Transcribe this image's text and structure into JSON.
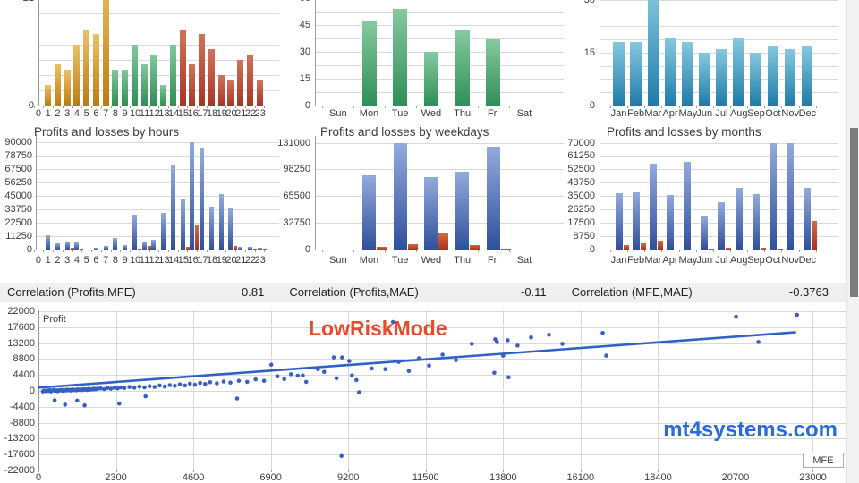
{
  "watermark": "mt4systems.com",
  "annotation": "LowRiskMode",
  "correlations": [
    {
      "label": "Correlation (Profits,MFE)",
      "value": "0.81"
    },
    {
      "label": "Correlation (Profits,MAE)",
      "value": "-0.11"
    },
    {
      "label": "Correlation (MFE,MAE)",
      "value": "-0.3763"
    }
  ],
  "palette": {
    "hours_early": [
      "#edc169",
      "#bc7c10"
    ],
    "hours_mid": [
      "#82c89d",
      "#2f8f55"
    ],
    "hours_late": [
      "#d0745a",
      "#a93427"
    ],
    "weekday_green": [
      "#85c9a0",
      "#2f8f58"
    ],
    "month_teal": [
      "#87c8df",
      "#1e7ca8"
    ],
    "profit_blue": [
      "#93aadc",
      "#30509c"
    ],
    "loss_red": [
      "#d06a45",
      "#aa3418"
    ],
    "scatter_dot": "#3a5ec4",
    "trend_line": "#2f62c4",
    "annotation_red": "#e8492a",
    "watermark_blue": "#2a6ade"
  },
  "chart_data": [
    {
      "id": "trades_by_hours",
      "type": "bar",
      "title": "",
      "categories": [
        "0",
        "1",
        "2",
        "3",
        "4",
        "5",
        "6",
        "7",
        "8",
        "9",
        "10",
        "11",
        "12",
        "13",
        "14",
        "15",
        "16",
        "17",
        "18",
        "19",
        "20",
        "21",
        "22",
        "23"
      ],
      "values": [
        0,
        4,
        8,
        7,
        12,
        15,
        14,
        26,
        7,
        7,
        12,
        8,
        10,
        4,
        12,
        15,
        8,
        14,
        11,
        6,
        5,
        9,
        10,
        5
      ],
      "ylim": [
        0,
        21
      ],
      "yticks": [
        0,
        21
      ],
      "grid_step": 3,
      "segment_colors": [
        {
          "to": 7,
          "color": "hours_early"
        },
        {
          "to": 14,
          "color": "hours_mid"
        },
        {
          "to": 23,
          "color": "hours_late"
        }
      ],
      "note": "top of chart cut off by viewport"
    },
    {
      "id": "trades_by_weekdays",
      "type": "bar",
      "title": "",
      "categories": [
        "Sun",
        "Mon",
        "Tue",
        "Wed",
        "Thu",
        "Fri",
        "Sat"
      ],
      "values": [
        0,
        47,
        54,
        30,
        42,
        37,
        0
      ],
      "ylim": [
        0,
        60
      ],
      "yticks": [
        0,
        15,
        30,
        45,
        60
      ],
      "grid_step": 7.5,
      "color": "weekday_green"
    },
    {
      "id": "trades_by_months",
      "type": "bar",
      "title": "",
      "categories": [
        "Jan",
        "Feb",
        "Mar",
        "Apr",
        "May",
        "Jun",
        "Jul",
        "Aug",
        "Sep",
        "Oct",
        "Nov",
        "Dec"
      ],
      "values": [
        18,
        18,
        33,
        19,
        18,
        15,
        16,
        19,
        15,
        17,
        16,
        17
      ],
      "ylim": [
        0,
        30
      ],
      "yticks": [
        0,
        15,
        30
      ],
      "grid_step": 3.75,
      "color": "month_teal"
    },
    {
      "id": "pnl_by_hours",
      "type": "bar",
      "title": "Profits and losses by hours",
      "categories": [
        "0",
        "1",
        "2",
        "3",
        "4",
        "5",
        "6",
        "7",
        "8",
        "9",
        "10",
        "11",
        "12",
        "13",
        "14",
        "15",
        "16",
        "17",
        "18",
        "19",
        "20",
        "21",
        "22",
        "23"
      ],
      "series": [
        {
          "name": "profit",
          "color": "profit_blue",
          "values": [
            0,
            12000,
            5500,
            6500,
            6000,
            0,
            1500,
            3200,
            9500,
            3500,
            29500,
            6500,
            8500,
            31000,
            71500,
            42000,
            90000,
            85000,
            36000,
            46500,
            34500,
            2500,
            2500,
            1800
          ]
        },
        {
          "name": "loss",
          "color": "loss_red",
          "values": [
            0,
            0,
            0,
            1500,
            800,
            0,
            0,
            0,
            0,
            0,
            900,
            2800,
            0,
            0,
            0,
            2000,
            21000,
            0,
            0,
            0,
            3000,
            0,
            1000,
            900
          ]
        }
      ],
      "ylim": [
        0,
        90000
      ],
      "yticks": [
        0,
        11250,
        22500,
        33750,
        45000,
        56250,
        67500,
        78750,
        90000
      ],
      "grid_step": 11250
    },
    {
      "id": "pnl_by_weekdays",
      "type": "bar",
      "title": "Profits and losses by weekdays",
      "categories": [
        "Sun",
        "Mon",
        "Tue",
        "Wed",
        "Thu",
        "Fri",
        "Sat"
      ],
      "series": [
        {
          "name": "profit",
          "color": "profit_blue",
          "values": [
            0,
            91000,
            131000,
            89000,
            95500,
            126000,
            0
          ]
        },
        {
          "name": "loss",
          "color": "loss_red",
          "values": [
            0,
            3000,
            6500,
            19500,
            5500,
            700,
            0
          ]
        }
      ],
      "ylim": [
        0,
        131000
      ],
      "yticks": [
        0,
        32750,
        65500,
        98250,
        131000
      ],
      "grid_step": 32750
    },
    {
      "id": "pnl_by_months",
      "type": "bar",
      "title": "Profits and losses by months",
      "categories": [
        "Jan",
        "Feb",
        "Mar",
        "Apr",
        "May",
        "Jun",
        "Jul",
        "Aug",
        "Sep",
        "Oct",
        "Nov",
        "Dec"
      ],
      "series": [
        {
          "name": "profit",
          "color": "profit_blue",
          "values": [
            37000,
            37500,
            56000,
            35500,
            57500,
            21500,
            31000,
            40500,
            36300,
            70000,
            70000,
            40500
          ]
        },
        {
          "name": "loss",
          "color": "loss_red",
          "values": [
            3000,
            4300,
            5800,
            0,
            0,
            600,
            1200,
            0,
            1300,
            500,
            0,
            19000
          ]
        }
      ],
      "ylim": [
        0,
        70000
      ],
      "yticks": [
        0,
        8750,
        17500,
        26250,
        35000,
        43750,
        52500,
        61250,
        70000
      ],
      "grid_step": 8750
    },
    {
      "id": "profit_vs_mfe",
      "type": "scatter",
      "xlabel": "MFE",
      "ylabel": "Profit",
      "xlim": [
        0,
        23000
      ],
      "ylim": [
        -22000,
        22000
      ],
      "xticks": [
        0,
        2300,
        4600,
        6900,
        9200,
        11500,
        13800,
        16100,
        18400,
        20700,
        23000
      ],
      "yticks": [
        22000,
        17600,
        13200,
        8800,
        4400,
        0,
        -4400,
        -8800,
        -13200,
        -17600,
        -22000
      ],
      "trend": {
        "x": [
          0,
          22500
        ],
        "y": [
          900,
          16200
        ]
      },
      "points": [
        [
          130,
          -150
        ],
        [
          170,
          50
        ],
        [
          210,
          -50
        ],
        [
          250,
          150
        ],
        [
          290,
          0
        ],
        [
          330,
          200
        ],
        [
          370,
          -150
        ],
        [
          410,
          100
        ],
        [
          450,
          250
        ],
        [
          490,
          0
        ],
        [
          530,
          150
        ],
        [
          570,
          -100
        ],
        [
          610,
          200
        ],
        [
          650,
          100
        ],
        [
          690,
          300
        ],
        [
          730,
          0
        ],
        [
          770,
          200
        ],
        [
          810,
          100
        ],
        [
          850,
          350
        ],
        [
          890,
          150
        ],
        [
          930,
          300
        ],
        [
          970,
          100
        ],
        [
          1010,
          400
        ],
        [
          1050,
          200
        ],
        [
          1090,
          300
        ],
        [
          1130,
          150
        ],
        [
          1170,
          450
        ],
        [
          1210,
          250
        ],
        [
          1250,
          400
        ],
        [
          1290,
          200
        ],
        [
          1330,
          500
        ],
        [
          1370,
          300
        ],
        [
          1410,
          450
        ],
        [
          1450,
          250
        ],
        [
          1490,
          550
        ],
        [
          1530,
          350
        ],
        [
          1570,
          500
        ],
        [
          1610,
          400
        ],
        [
          1650,
          600
        ],
        [
          1690,
          450
        ],
        [
          1730,
          550
        ],
        [
          1770,
          650
        ],
        [
          480,
          -2600
        ],
        [
          790,
          -3800
        ],
        [
          1150,
          -2700
        ],
        [
          1370,
          -4000
        ],
        [
          2400,
          -3500
        ],
        [
          3180,
          -1500
        ],
        [
          5900,
          -2100
        ],
        [
          1850,
          700
        ],
        [
          1950,
          500
        ],
        [
          2050,
          800
        ],
        [
          2150,
          600
        ],
        [
          2250,
          900
        ],
        [
          2350,
          700
        ],
        [
          2450,
          1000
        ],
        [
          2550,
          800
        ],
        [
          2700,
          1100
        ],
        [
          2850,
          900
        ],
        [
          3000,
          1200
        ],
        [
          3150,
          1000
        ],
        [
          3300,
          1300
        ],
        [
          3450,
          1100
        ],
        [
          3600,
          1500
        ],
        [
          3750,
          1200
        ],
        [
          3900,
          1600
        ],
        [
          4050,
          1400
        ],
        [
          4200,
          1800
        ],
        [
          4350,
          1500
        ],
        [
          4500,
          2000
        ],
        [
          4650,
          1700
        ],
        [
          4800,
          2200
        ],
        [
          4950,
          1900
        ],
        [
          5100,
          2400
        ],
        [
          5300,
          2100
        ],
        [
          5500,
          2600
        ],
        [
          5700,
          2300
        ],
        [
          5950,
          2800
        ],
        [
          6200,
          2500
        ],
        [
          6450,
          3200
        ],
        [
          6700,
          2800
        ],
        [
          6915,
          7250
        ],
        [
          7100,
          4000
        ],
        [
          7300,
          3300
        ],
        [
          7500,
          4600
        ],
        [
          7700,
          4200
        ],
        [
          7850,
          4250
        ],
        [
          7950,
          2500
        ],
        [
          8300,
          6000
        ],
        [
          8484,
          5250
        ],
        [
          8850,
          3500
        ],
        [
          8770,
          9250
        ],
        [
          9016,
          9250
        ],
        [
          9229,
          8250
        ],
        [
          9308,
          4250
        ],
        [
          9441,
          3000
        ],
        [
          9521,
          -400
        ],
        [
          9000,
          -18000
        ],
        [
          9900,
          6200
        ],
        [
          10300,
          6000
        ],
        [
          10530,
          19000
        ],
        [
          10700,
          8000
        ],
        [
          11000,
          5500
        ],
        [
          11300,
          9000
        ],
        [
          11600,
          7000
        ],
        [
          12000,
          10000
        ],
        [
          12400,
          8500
        ],
        [
          12870,
          13000
        ],
        [
          13537,
          5000
        ],
        [
          13564,
          14250
        ],
        [
          13617,
          13500
        ],
        [
          13800,
          9750
        ],
        [
          13936,
          14000
        ],
        [
          13963,
          3750
        ],
        [
          14229,
          12500
        ],
        [
          14628,
          14750
        ],
        [
          15160,
          15500
        ],
        [
          15559,
          13000
        ],
        [
          16755,
          16000
        ],
        [
          16862,
          9750
        ],
        [
          20718,
          20500
        ],
        [
          21383,
          13500
        ],
        [
          22527,
          21000
        ]
      ]
    }
  ]
}
